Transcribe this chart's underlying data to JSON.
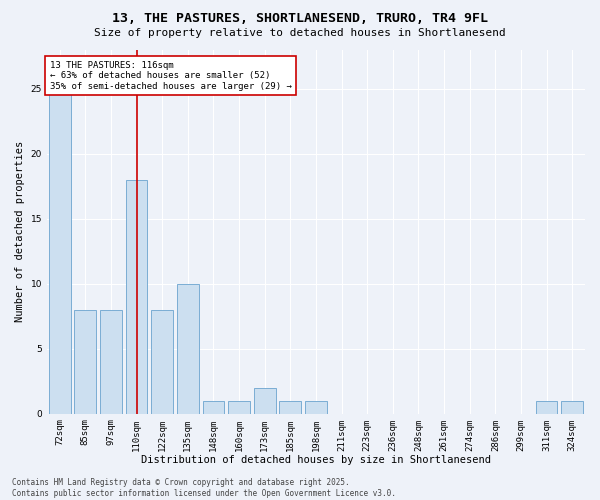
{
  "title": "13, THE PASTURES, SHORTLANESEND, TRURO, TR4 9FL",
  "subtitle": "Size of property relative to detached houses in Shortlanesend",
  "xlabel": "Distribution of detached houses by size in Shortlanesend",
  "ylabel": "Number of detached properties",
  "categories": [
    "72sqm",
    "85sqm",
    "97sqm",
    "110sqm",
    "122sqm",
    "135sqm",
    "148sqm",
    "160sqm",
    "173sqm",
    "185sqm",
    "198sqm",
    "211sqm",
    "223sqm",
    "236sqm",
    "248sqm",
    "261sqm",
    "274sqm",
    "286sqm",
    "299sqm",
    "311sqm",
    "324sqm"
  ],
  "values": [
    25,
    8,
    8,
    18,
    8,
    10,
    1,
    1,
    2,
    1,
    1,
    0,
    0,
    0,
    0,
    0,
    0,
    0,
    0,
    1,
    1
  ],
  "bar_color": "#ccdff0",
  "bar_edge_color": "#7aadd4",
  "background_color": "#eef2f9",
  "grid_color": "#ffffff",
  "annotation_text": "13 THE PASTURES: 116sqm\n← 63% of detached houses are smaller (52)\n35% of semi-detached houses are larger (29) →",
  "annotation_box_color": "#ffffff",
  "annotation_box_edge_color": "#cc0000",
  "vline_x_index": 3,
  "vline_color": "#cc0000",
  "ylim": [
    0,
    28
  ],
  "yticks": [
    0,
    5,
    10,
    15,
    20,
    25
  ],
  "footer": "Contains HM Land Registry data © Crown copyright and database right 2025.\nContains public sector information licensed under the Open Government Licence v3.0.",
  "title_fontsize": 9.5,
  "subtitle_fontsize": 8,
  "xlabel_fontsize": 7.5,
  "ylabel_fontsize": 7.5,
  "tick_fontsize": 6.5,
  "annotation_fontsize": 6.5,
  "footer_fontsize": 5.5
}
